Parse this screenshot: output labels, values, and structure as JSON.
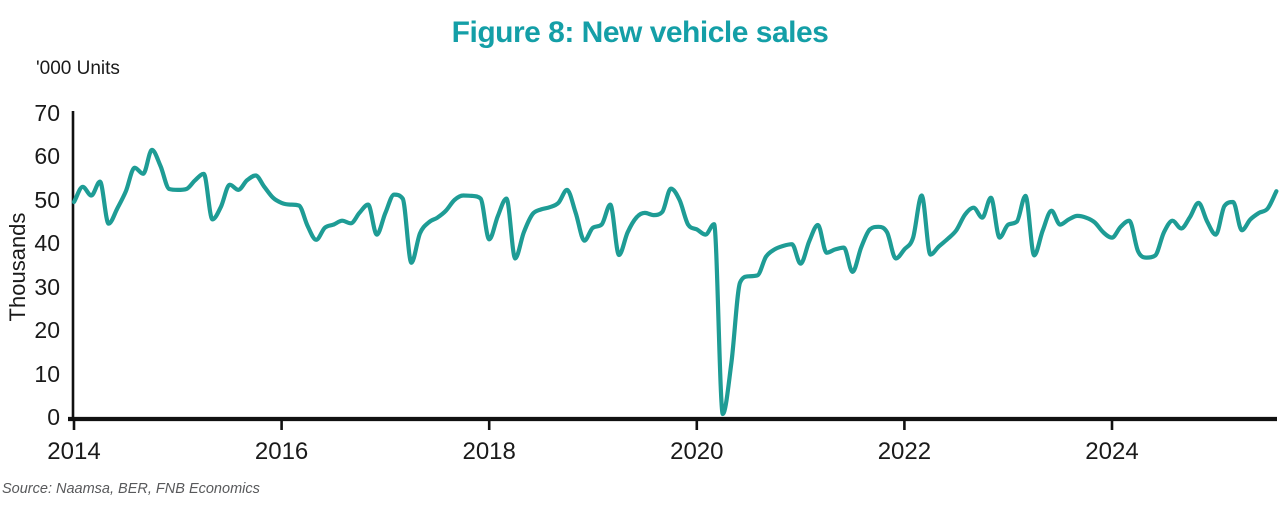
{
  "title": "Figure 8: New vehicle sales",
  "unit_label": "'000 Units",
  "ylabel": "Thousands",
  "source": "Source: Naamsa, BER, FNB Economics",
  "colors": {
    "title": "#149FA7",
    "line": "#1E9C95",
    "axis": "#111111",
    "tick_text": "#1a1a1a",
    "source_text": "#58595b"
  },
  "chart_data": {
    "type": "line",
    "title": "Figure 8: New vehicle sales",
    "unit_label": "'000 Units",
    "ylabel": "Thousands",
    "frequency": "monthly",
    "x_start": "2014-01",
    "x_end": "2025-08",
    "ylim": [
      0,
      70
    ],
    "y_ticks": [
      0,
      10,
      20,
      30,
      40,
      50,
      60,
      70
    ],
    "x_tick_labels": [
      "2014",
      "2016",
      "2018",
      "2020",
      "2022",
      "2024"
    ],
    "x_tick_months": [
      0,
      24,
      48,
      72,
      96,
      120
    ],
    "grid": false,
    "legend": "none",
    "series": [
      {
        "name": "New vehicle sales ('000 units)",
        "values": [
          49.5,
          53.0,
          51.0,
          54.2,
          44.5,
          48.0,
          52.0,
          57.4,
          56.0,
          61.5,
          57.8,
          52.5,
          52.3,
          52.5,
          54.5,
          56.0,
          45.5,
          48.5,
          53.5,
          52.3,
          54.5,
          55.6,
          53.0,
          50.5,
          49.3,
          48.9,
          48.7,
          44.0,
          40.8,
          43.6,
          44.3,
          45.2,
          44.6,
          47.0,
          48.9,
          42.0,
          47.0,
          51.2,
          50.3,
          35.5,
          42.3,
          44.8,
          45.9,
          47.5,
          50.0,
          51.0,
          50.9,
          50.3,
          40.9,
          46.3,
          50.3,
          36.5,
          42.5,
          46.7,
          47.8,
          48.3,
          49.3,
          52.3,
          47.0,
          40.6,
          43.6,
          44.3,
          48.9,
          37.3,
          42.5,
          45.9,
          47.0,
          46.5,
          47.2,
          52.6,
          50.0,
          44.3,
          43.2,
          42.0,
          44.4,
          0.7,
          12.5,
          31.0,
          32.4,
          32.6,
          36.9,
          38.6,
          39.4,
          39.8,
          35.3,
          40.5,
          44.2,
          37.8,
          38.6,
          39.0,
          33.4,
          39.0,
          43.2,
          43.8,
          42.5,
          36.5,
          38.6,
          41.3,
          51.0,
          37.4,
          39.3,
          41.0,
          43.0,
          46.6,
          48.2,
          45.9,
          50.5,
          41.3,
          44.3,
          45.0,
          50.9,
          37.2,
          43.0,
          47.5,
          44.3,
          45.5,
          46.3,
          45.9,
          44.8,
          42.5,
          41.3,
          43.8,
          45.2,
          38.2,
          36.7,
          37.2,
          42.5,
          45.2,
          43.4,
          46.0,
          49.3,
          45.0,
          42.0,
          48.6,
          49.5,
          43.0,
          45.5,
          47.0,
          48.0,
          52.0
        ]
      }
    ]
  }
}
